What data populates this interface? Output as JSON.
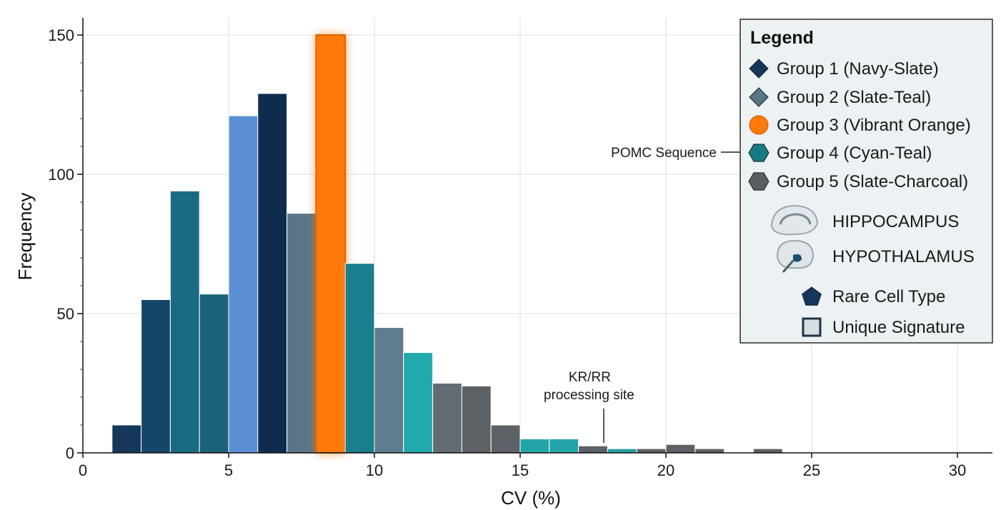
{
  "chart_data": {
    "type": "bar",
    "xlabel": "CV (%)",
    "ylabel": "Frequency",
    "xlim": [
      0,
      31
    ],
    "ylim": [
      0,
      150
    ],
    "grid": true,
    "xticks": [
      0,
      5,
      10,
      15,
      20,
      25,
      30
    ],
    "yticks": [
      0,
      50,
      100,
      150
    ],
    "bin_width": 1,
    "bins": [
      {
        "x": 1,
        "value": 10,
        "color": "#15385a"
      },
      {
        "x": 2,
        "value": 55,
        "color": "#13466a"
      },
      {
        "x": 3,
        "value": 94,
        "color": "#1b6a84"
      },
      {
        "x": 4,
        "value": 57,
        "color": "#1b6278"
      },
      {
        "x": 5,
        "value": 121,
        "color": "#5a8fd6"
      },
      {
        "x": 6,
        "value": 129,
        "color": "#0f2c4e"
      },
      {
        "x": 7,
        "value": 86,
        "color": "#5b7688"
      },
      {
        "x": 8,
        "value": 150,
        "color": "#ff7a0a",
        "highlight": true
      },
      {
        "x": 9,
        "value": 68,
        "color": "#1b7e8c"
      },
      {
        "x": 10,
        "value": 45,
        "color": "#5f7d8e"
      },
      {
        "x": 11,
        "value": 36,
        "color": "#23aaae"
      },
      {
        "x": 12,
        "value": 25,
        "color": "#636b73"
      },
      {
        "x": 13,
        "value": 24,
        "color": "#5c6166"
      },
      {
        "x": 14,
        "value": 10,
        "color": "#5c6166"
      },
      {
        "x": 15,
        "value": 5,
        "color": "#23a5a8"
      },
      {
        "x": 16,
        "value": 5,
        "color": "#23a5a8"
      },
      {
        "x": 17,
        "value": 2.5,
        "color": "#5c6166"
      },
      {
        "x": 18,
        "value": 1.5,
        "color": "#2a9ea2"
      },
      {
        "x": 19,
        "value": 1.5,
        "color": "#5c6166"
      },
      {
        "x": 20,
        "value": 3,
        "color": "#5c6166"
      },
      {
        "x": 21,
        "value": 1.5,
        "color": "#5c6166"
      },
      {
        "x": 23,
        "value": 1.5,
        "color": "#5c6166"
      }
    ],
    "annotations": [
      {
        "lines": [
          "KR/RR",
          "processing site"
        ],
        "x": 18,
        "y": 22
      },
      {
        "lines": [
          "POMC Sequence"
        ],
        "x": 22,
        "y": 108
      }
    ],
    "legend": {
      "title": "Legend",
      "position": "top-right",
      "entries": [
        {
          "label": "Group 1 (Navy-Slate)",
          "marker": "diamond-icon",
          "color": "#16365a"
        },
        {
          "label": "Group 2 (Slate-Teal)",
          "marker": "diamond-icon",
          "color": "#5b7584"
        },
        {
          "label": "Group 3 (Vibrant Orange)",
          "marker": "circle-icon",
          "color": "#ff7a0a"
        },
        {
          "label": "Group 4 (Cyan-Teal)",
          "marker": "hexagon-icon",
          "color": "#177a82"
        },
        {
          "label": "Group 5 (Slate-Charcoal)",
          "marker": "hexagon-icon",
          "color": "#5a5e62"
        },
        {
          "label": "HIPPOCAMPUS",
          "marker": "hippocampus-icon",
          "color": "#9aa7ae"
        },
        {
          "label": "HYPOTHALAMUS",
          "marker": "hypothalamus-icon",
          "color": "#1b4f72"
        },
        {
          "label": "Rare Cell Type",
          "marker": "pentagon-icon",
          "color": "#16365a"
        },
        {
          "label": "Unique Signature",
          "marker": "square-icon",
          "color": "#d7dde1"
        }
      ]
    }
  }
}
